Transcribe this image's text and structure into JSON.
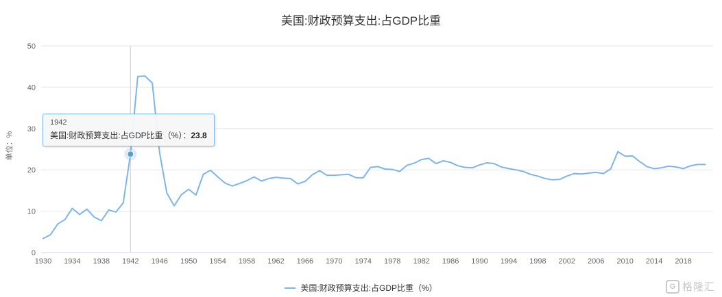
{
  "title": "美国:财政预算支出:占GDP比重",
  "y_axis_title": "单位：%",
  "tooltip": {
    "year": "1942",
    "label": "美国:财政预算支出:占GDP比重（%）：",
    "value": "23.8"
  },
  "legend": {
    "label": "美国:财政预算支出:占GDP比重（%）"
  },
  "watermark": "格隆汇",
  "colors": {
    "line": "#7cb5ec",
    "marker": "#5b9bd5",
    "halo": "#7cb5ec",
    "grid": "#e6e6e6",
    "axis_line": "#ccd6eb",
    "crosshair": "#cccccc",
    "tooltip_border": "#7cb5ec"
  },
  "chart_data": {
    "type": "line",
    "title": "美国:财政预算支出:占GDP比重",
    "xlabel": "",
    "ylabel": "单位：%",
    "ylim": [
      0,
      50
    ],
    "xlim": [
      1930,
      2022
    ],
    "y_ticks": [
      0,
      10,
      20,
      30,
      40,
      50
    ],
    "x_ticks": [
      1930,
      1934,
      1938,
      1942,
      1946,
      1950,
      1954,
      1958,
      1962,
      1966,
      1970,
      1974,
      1978,
      1982,
      1986,
      1990,
      1994,
      1998,
      2002,
      2006,
      2010,
      2014,
      2018
    ],
    "grid": "horizontal",
    "legend_position": "bottom",
    "highlight": {
      "x": 1942,
      "y": 23.8,
      "label": "1942"
    },
    "series": [
      {
        "name": "美国:财政预算支出:占GDP比重（%）",
        "x": [
          1930,
          1931,
          1932,
          1933,
          1934,
          1935,
          1936,
          1937,
          1938,
          1939,
          1940,
          1941,
          1942,
          1943,
          1944,
          1945,
          1946,
          1947,
          1948,
          1949,
          1950,
          1951,
          1952,
          1953,
          1954,
          1955,
          1956,
          1957,
          1958,
          1959,
          1960,
          1961,
          1962,
          1963,
          1964,
          1965,
          1966,
          1967,
          1968,
          1969,
          1970,
          1971,
          1972,
          1973,
          1974,
          1975,
          1976,
          1977,
          1978,
          1979,
          1980,
          1981,
          1982,
          1983,
          1984,
          1985,
          1986,
          1987,
          1988,
          1989,
          1990,
          1991,
          1992,
          1993,
          1994,
          1995,
          1996,
          1997,
          1998,
          1999,
          2000,
          2001,
          2002,
          2003,
          2004,
          2005,
          2006,
          2007,
          2008,
          2009,
          2010,
          2011,
          2012,
          2013,
          2014,
          2015,
          2016,
          2017,
          2018,
          2019,
          2020,
          2021
        ],
        "values": [
          3.4,
          4.3,
          6.9,
          8.0,
          10.7,
          9.2,
          10.5,
          8.6,
          7.7,
          10.3,
          9.8,
          12.0,
          23.8,
          42.6,
          42.7,
          41.0,
          24.2,
          14.4,
          11.3,
          14.0,
          15.3,
          13.9,
          18.9,
          19.9,
          18.3,
          16.8,
          16.1,
          16.7,
          17.4,
          18.3,
          17.3,
          17.9,
          18.2,
          18.0,
          17.9,
          16.6,
          17.2,
          18.8,
          19.8,
          18.7,
          18.7,
          18.8,
          18.9,
          18.1,
          18.1,
          20.6,
          20.8,
          20.2,
          20.1,
          19.6,
          21.1,
          21.6,
          22.5,
          22.8,
          21.5,
          22.2,
          21.8,
          21.0,
          20.6,
          20.5,
          21.2,
          21.7,
          21.5,
          20.7,
          20.3,
          20.0,
          19.6,
          18.9,
          18.5,
          17.9,
          17.6,
          17.7,
          18.5,
          19.1,
          19.0,
          19.2,
          19.4,
          19.1,
          20.2,
          24.4,
          23.3,
          23.4,
          22.0,
          20.8,
          20.3,
          20.5,
          20.9,
          20.7,
          20.3,
          21.0,
          21.3,
          21.3
        ]
      }
    ]
  }
}
